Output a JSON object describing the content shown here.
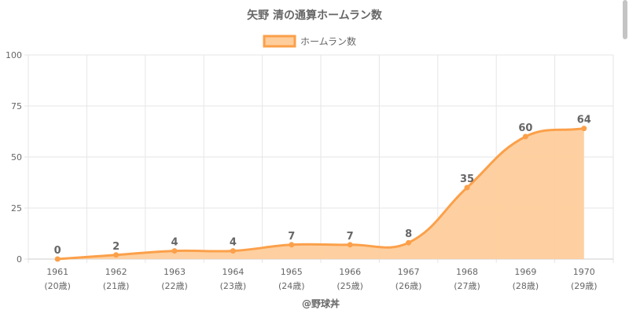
{
  "chart_data": {
    "type": "area",
    "title": "矢野 清の通算ホームラン数",
    "legend": {
      "label": "ホームラン数",
      "position": "top"
    },
    "x_labels": [
      "1961",
      "1962",
      "1963",
      "1964",
      "1965",
      "1966",
      "1967",
      "1968",
      "1969",
      "1970"
    ],
    "x_sublabels": [
      "(20歳)",
      "(21歳)",
      "(22歳)",
      "(23歳)",
      "(24歳)",
      "(25歳)",
      "(26歳)",
      "(27歳)",
      "(28歳)",
      "(29歳)"
    ],
    "series": [
      {
        "name": "ホームラン数",
        "values": [
          0,
          2,
          4,
          4,
          7,
          7,
          8,
          35,
          60,
          64
        ]
      }
    ],
    "ylim": [
      0,
      100
    ],
    "yticks": [
      0,
      25,
      50,
      75,
      100
    ],
    "grid": true,
    "colors": {
      "line": "#fba04a",
      "fill": "#fecd9c"
    }
  },
  "credit": "@野球丼"
}
